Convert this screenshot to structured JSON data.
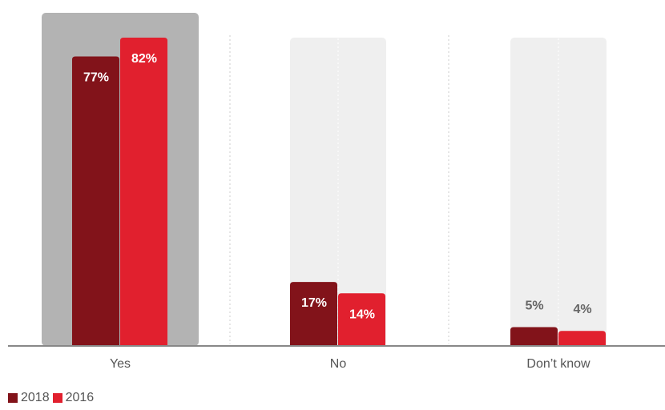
{
  "chart_data": {
    "type": "bar",
    "categories": [
      "Yes",
      "No",
      "Don't know"
    ],
    "category_labels": [
      "Yes",
      "No",
      "Don’t know"
    ],
    "series": [
      {
        "name": "2018",
        "values": [
          77,
          17,
          5
        ],
        "labels": [
          "77%",
          "17%",
          "5%"
        ]
      },
      {
        "name": "2016",
        "values": [
          82,
          14,
          4
        ],
        "labels": [
          "82%",
          "14%",
          "4%"
        ]
      }
    ],
    "ylim": [
      0,
      100
    ],
    "highlighted_category": "Yes",
    "grid": false,
    "legend_position": "bottom-left"
  },
  "colors": {
    "series_2018": "#82131a",
    "series_2016": "#e1202e",
    "highlight_background": "#b3b3b3",
    "background_column": "#efefef",
    "axis": "#888888",
    "separator": "#cccccc",
    "label_on_bar": "#ffffff",
    "label_above_bar": "#666666"
  }
}
